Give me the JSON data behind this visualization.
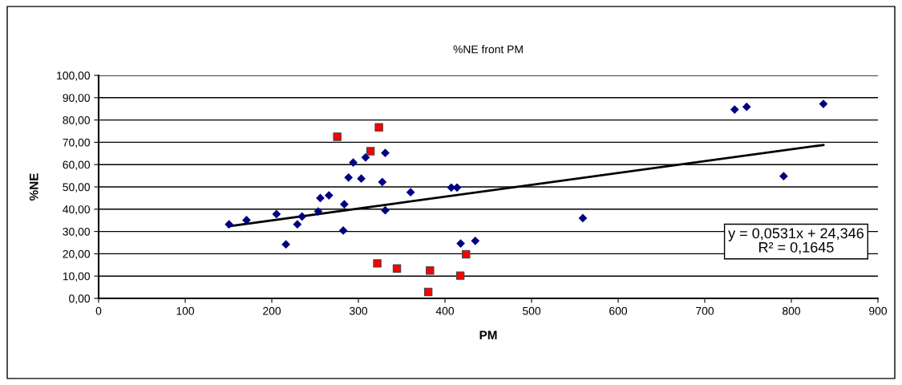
{
  "chart_data": {
    "type": "scatter",
    "title": "%NE front PM",
    "xlabel": "PM",
    "ylabel": "%NE",
    "xlim": [
      0,
      900
    ],
    "xticks": [
      0,
      100,
      200,
      300,
      400,
      500,
      600,
      700,
      800,
      900
    ],
    "ylim": [
      0,
      100
    ],
    "yticks": [
      {
        "value": 0,
        "label": "0,00"
      },
      {
        "value": 10,
        "label": "10,00"
      },
      {
        "value": 20,
        "label": "20,00"
      },
      {
        "value": 30,
        "label": "30,00"
      },
      {
        "value": 40,
        "label": "40,00"
      },
      {
        "value": 50,
        "label": "50,00"
      },
      {
        "value": 60,
        "label": "60,00"
      },
      {
        "value": 70,
        "label": "70,00"
      },
      {
        "value": 80,
        "label": "80,00"
      },
      {
        "value": 90,
        "label": "90,00"
      },
      {
        "value": 100,
        "label": "100,00"
      }
    ],
    "grid": "y",
    "legend": false,
    "series": [
      {
        "marker": "diamond",
        "color": "#000080",
        "x": [
          150.6,
          170.8,
          205.4,
          216.3,
          229.5,
          234.9,
          253.6,
          256,
          266,
          283.7,
          282.5,
          288.6,
          294,
          303.3,
          308.3,
          331,
          327.6,
          331,
          360.3,
          407.3,
          413.9,
          418.1,
          435,
          559.2,
          734.5,
          748.4,
          837,
          791.1
        ],
        "values": [
          33.2,
          35.1,
          37.8,
          24.2,
          33.2,
          36.7,
          39.0,
          45.0,
          46.2,
          42.2,
          30.4,
          54.2,
          60.9,
          53.7,
          63.2,
          65.2,
          52.2,
          39.5,
          47.6,
          49.7,
          49.7,
          24.6,
          25.8,
          36.0,
          84.7,
          85.9,
          87.2,
          54.8
        ]
      },
      {
        "marker": "square",
        "color": "#ff0000",
        "x": [
          275.6,
          314,
          323.7,
          321.8,
          344.5,
          382.7,
          424.3,
          417.7,
          380.7
        ],
        "values": [
          72.5,
          66.0,
          76.7,
          15.7,
          13.4,
          12.5,
          19.8,
          10.2,
          2.9
        ]
      },
      {
        "type": "line",
        "marker": "none",
        "line_style": "solid",
        "color": "#000000",
        "x": [
          150,
          837
        ],
        "values": [
          32.3,
          68.8
        ]
      }
    ],
    "annotations": [
      "y = 0,0531x + 24,346\nR² = 0,1645"
    ]
  }
}
